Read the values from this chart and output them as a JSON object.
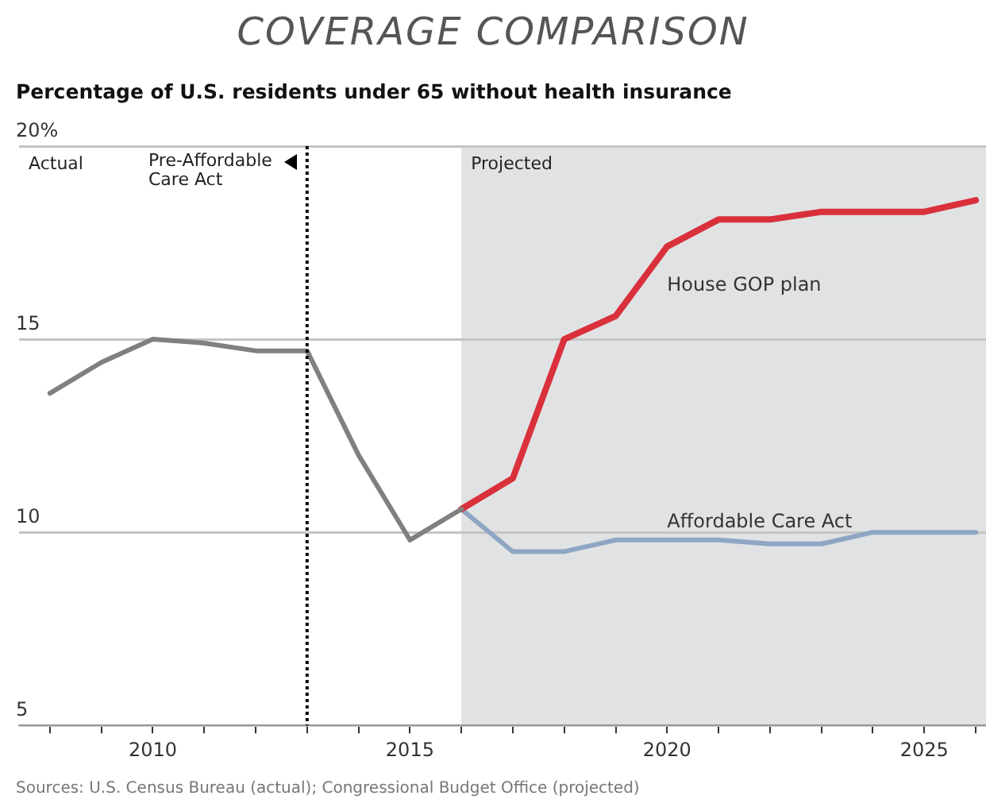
{
  "chart_data": {
    "type": "line",
    "title": "COVERAGE COMPARISON",
    "subtitle": "Percentage of U.S. residents under 65 without health insurance",
    "series": [
      {
        "color": "#808080",
        "x": [
          2008,
          2009,
          2010,
          2011,
          2012,
          2013,
          2014,
          2015,
          2016
        ],
        "values": [
          13.6,
          14.4,
          15.0,
          14.9,
          14.7,
          14.7,
          12.0,
          9.8,
          10.6
        ]
      },
      {
        "name": "House GOP plan",
        "color": "#d9303b",
        "x": [
          2016,
          2017,
          2018,
          2019,
          2020,
          2021,
          2022,
          2023,
          2024,
          2025,
          2026
        ],
        "values": [
          10.6,
          11.4,
          15.0,
          15.6,
          17.4,
          18.1,
          18.1,
          18.3,
          18.3,
          18.3,
          18.6
        ]
      },
      {
        "name": "Affordable Care Act",
        "color": "#8ea6c4",
        "x": [
          2016,
          2017,
          2018,
          2019,
          2020,
          2021,
          2022,
          2023,
          2024,
          2025,
          2026
        ],
        "values": [
          10.6,
          9.5,
          9.5,
          9.8,
          9.8,
          9.8,
          9.7,
          9.7,
          10.0,
          10.0,
          10.0
        ]
      }
    ],
    "xlim": [
      2007.4,
      2026.2
    ],
    "xticks": [
      {
        "value": 2008,
        "label": null
      },
      {
        "value": 2009,
        "label": null
      },
      2010,
      {
        "value": 2011,
        "label": null
      },
      {
        "value": 2012,
        "label": null
      },
      {
        "value": 2013,
        "label": null
      },
      {
        "value": 2014,
        "label": null
      },
      2015,
      {
        "value": 2016,
        "label": null
      },
      {
        "value": 2017,
        "label": null
      },
      {
        "value": 2018,
        "label": null
      },
      {
        "value": 2019,
        "label": null
      },
      2020,
      {
        "value": 2021,
        "label": null
      },
      {
        "value": 2022,
        "label": null
      },
      {
        "value": 2023,
        "label": null
      },
      {
        "value": 2024,
        "label": null
      },
      2025,
      {
        "value": 2026,
        "label": null
      }
    ],
    "ylim": [
      5,
      20
    ],
    "yticks": [
      5,
      10,
      15,
      {
        "value": 20,
        "label": "20%"
      }
    ],
    "grid": "y",
    "legend": false,
    "marker": "none",
    "line_style": "solid",
    "ref_lines": [
      {
        "axis": "x",
        "value": 2013,
        "label": "Pre-Affordable Care Act",
        "color": "#000000",
        "line_style": "dotted"
      }
    ],
    "bands": [
      {
        "axis": "x",
        "from": 2016,
        "to": 2026.2,
        "label": "Projected",
        "color": "#e1e2e4"
      }
    ],
    "annotations": [
      "Actual",
      "Sources: U.S. Census Bureau (actual); Congressional Budget Office (projected)"
    ]
  }
}
